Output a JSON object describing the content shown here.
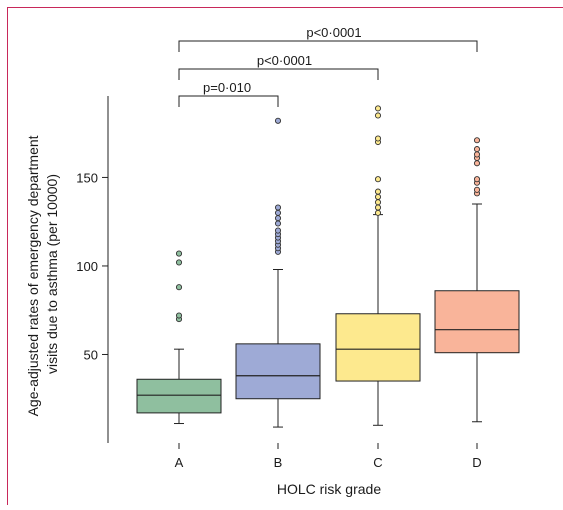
{
  "chart_data": {
    "type": "box",
    "title": "",
    "xlabel": "HOLC risk grade",
    "ylabel": "Age-adjusted rates of emergency department visits due to asthma (per 10000)",
    "ylabel_lines": [
      "Age-adjusted rates of emergency department",
      "visits due to asthma (per 10000)"
    ],
    "categories": [
      "A",
      "B",
      "C",
      "D"
    ],
    "ylim": [
      0,
      196
    ],
    "yticks": [
      50,
      100,
      150
    ],
    "grid": false,
    "legend": "none",
    "boxes": [
      {
        "category": "A",
        "color": "#8fbf9f",
        "whisker_low": 11,
        "q1": 17,
        "median": 27,
        "q3": 36,
        "whisker_high": 53,
        "outliers": [
          70,
          72,
          88,
          102,
          107
        ]
      },
      {
        "category": "B",
        "color": "#9eaad6",
        "whisker_low": 9,
        "q1": 25,
        "median": 38,
        "q3": 56,
        "whisker_high": 98,
        "outliers": [
          108,
          110,
          112,
          114,
          116,
          118,
          120,
          124,
          127,
          130,
          133,
          182
        ]
      },
      {
        "category": "C",
        "color": "#fde98e",
        "whisker_low": 10,
        "q1": 35,
        "median": 53,
        "q3": 73,
        "whisker_high": 129,
        "outliers": [
          130,
          133,
          136,
          139,
          142,
          149,
          170,
          172,
          185,
          189
        ]
      },
      {
        "category": "D",
        "color": "#f9b49a",
        "whisker_low": 12,
        "q1": 51,
        "median": 64,
        "q3": 86,
        "whisker_high": 135,
        "outliers": [
          141,
          143,
          147,
          149,
          158,
          161,
          163,
          166,
          171
        ]
      }
    ],
    "comparisons": [
      {
        "from": "A",
        "to": "B",
        "label": "p=0·010"
      },
      {
        "from": "A",
        "to": "C",
        "label": "p<0·0001"
      },
      {
        "from": "A",
        "to": "D",
        "label": "p<0·0001"
      }
    ]
  }
}
